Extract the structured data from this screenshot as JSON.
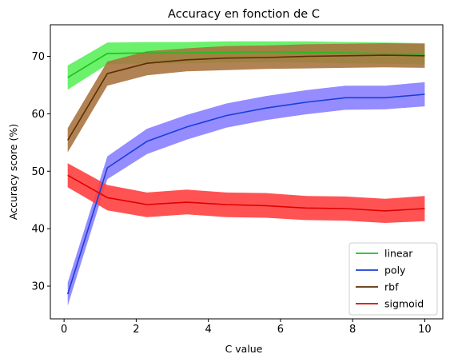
{
  "chart_data": {
    "type": "line",
    "title": "Accuracy en fonction de C",
    "xlabel": "C value",
    "ylabel": "Accuracy score (%)",
    "xlim": [
      -0.38,
      10.5
    ],
    "ylim": [
      24.3,
      75.5
    ],
    "xticks": [
      0,
      2,
      4,
      6,
      8,
      10
    ],
    "yticks": [
      30,
      40,
      50,
      60,
      70
    ],
    "x": [
      0.1,
      1.2,
      2.3,
      3.4,
      4.5,
      5.6,
      6.7,
      7.8,
      8.9,
      10.0
    ],
    "series": [
      {
        "name": "linear",
        "color": "#1fbf1f",
        "fill": "#5bf05b",
        "values": [
          66.3,
          70.5,
          70.6,
          70.6,
          70.7,
          70.8,
          70.7,
          70.6,
          70.5,
          70.4
        ],
        "lower": [
          64.2,
          68.6,
          68.8,
          68.8,
          68.9,
          69.0,
          68.9,
          68.8,
          68.7,
          68.6
        ],
        "upper": [
          68.4,
          72.4,
          72.5,
          72.5,
          72.6,
          72.6,
          72.6,
          72.5,
          72.4,
          72.3
        ]
      },
      {
        "name": "poly",
        "color": "#1a3fd8",
        "fill": "#8a80ff",
        "values": [
          28.6,
          50.6,
          55.2,
          57.7,
          59.7,
          61.0,
          62.0,
          62.8,
          62.8,
          63.4
        ],
        "lower": [
          26.6,
          48.6,
          53.0,
          55.5,
          57.6,
          58.9,
          59.9,
          60.7,
          60.8,
          61.3
        ],
        "upper": [
          30.6,
          52.6,
          57.4,
          59.8,
          61.8,
          63.1,
          64.1,
          64.9,
          64.9,
          65.5
        ]
      },
      {
        "name": "rbf",
        "color": "#5c2e00",
        "fill": "#a87440",
        "values": [
          55.4,
          67.0,
          68.8,
          69.4,
          69.7,
          69.8,
          70.0,
          70.1,
          70.2,
          70.1
        ],
        "lower": [
          53.3,
          64.9,
          66.7,
          67.4,
          67.6,
          67.8,
          67.9,
          68.0,
          68.1,
          68.0
        ],
        "upper": [
          57.5,
          69.1,
          70.9,
          71.4,
          71.8,
          71.9,
          72.1,
          72.2,
          72.3,
          72.2
        ]
      },
      {
        "name": "sigmoid",
        "color": "#e00000",
        "fill": "#ff4040",
        "values": [
          49.3,
          45.4,
          44.2,
          44.6,
          44.2,
          44.0,
          43.6,
          43.5,
          43.1,
          43.5
        ],
        "lower": [
          47.2,
          43.2,
          42.0,
          42.5,
          42.0,
          41.9,
          41.5,
          41.4,
          41.0,
          41.3
        ],
        "upper": [
          51.4,
          47.6,
          46.3,
          46.8,
          46.3,
          46.2,
          45.7,
          45.6,
          45.2,
          45.7
        ]
      }
    ],
    "legend": {
      "position": "lower-right",
      "entries": [
        "linear",
        "poly",
        "rbf",
        "sigmoid"
      ]
    },
    "grid": false
  }
}
